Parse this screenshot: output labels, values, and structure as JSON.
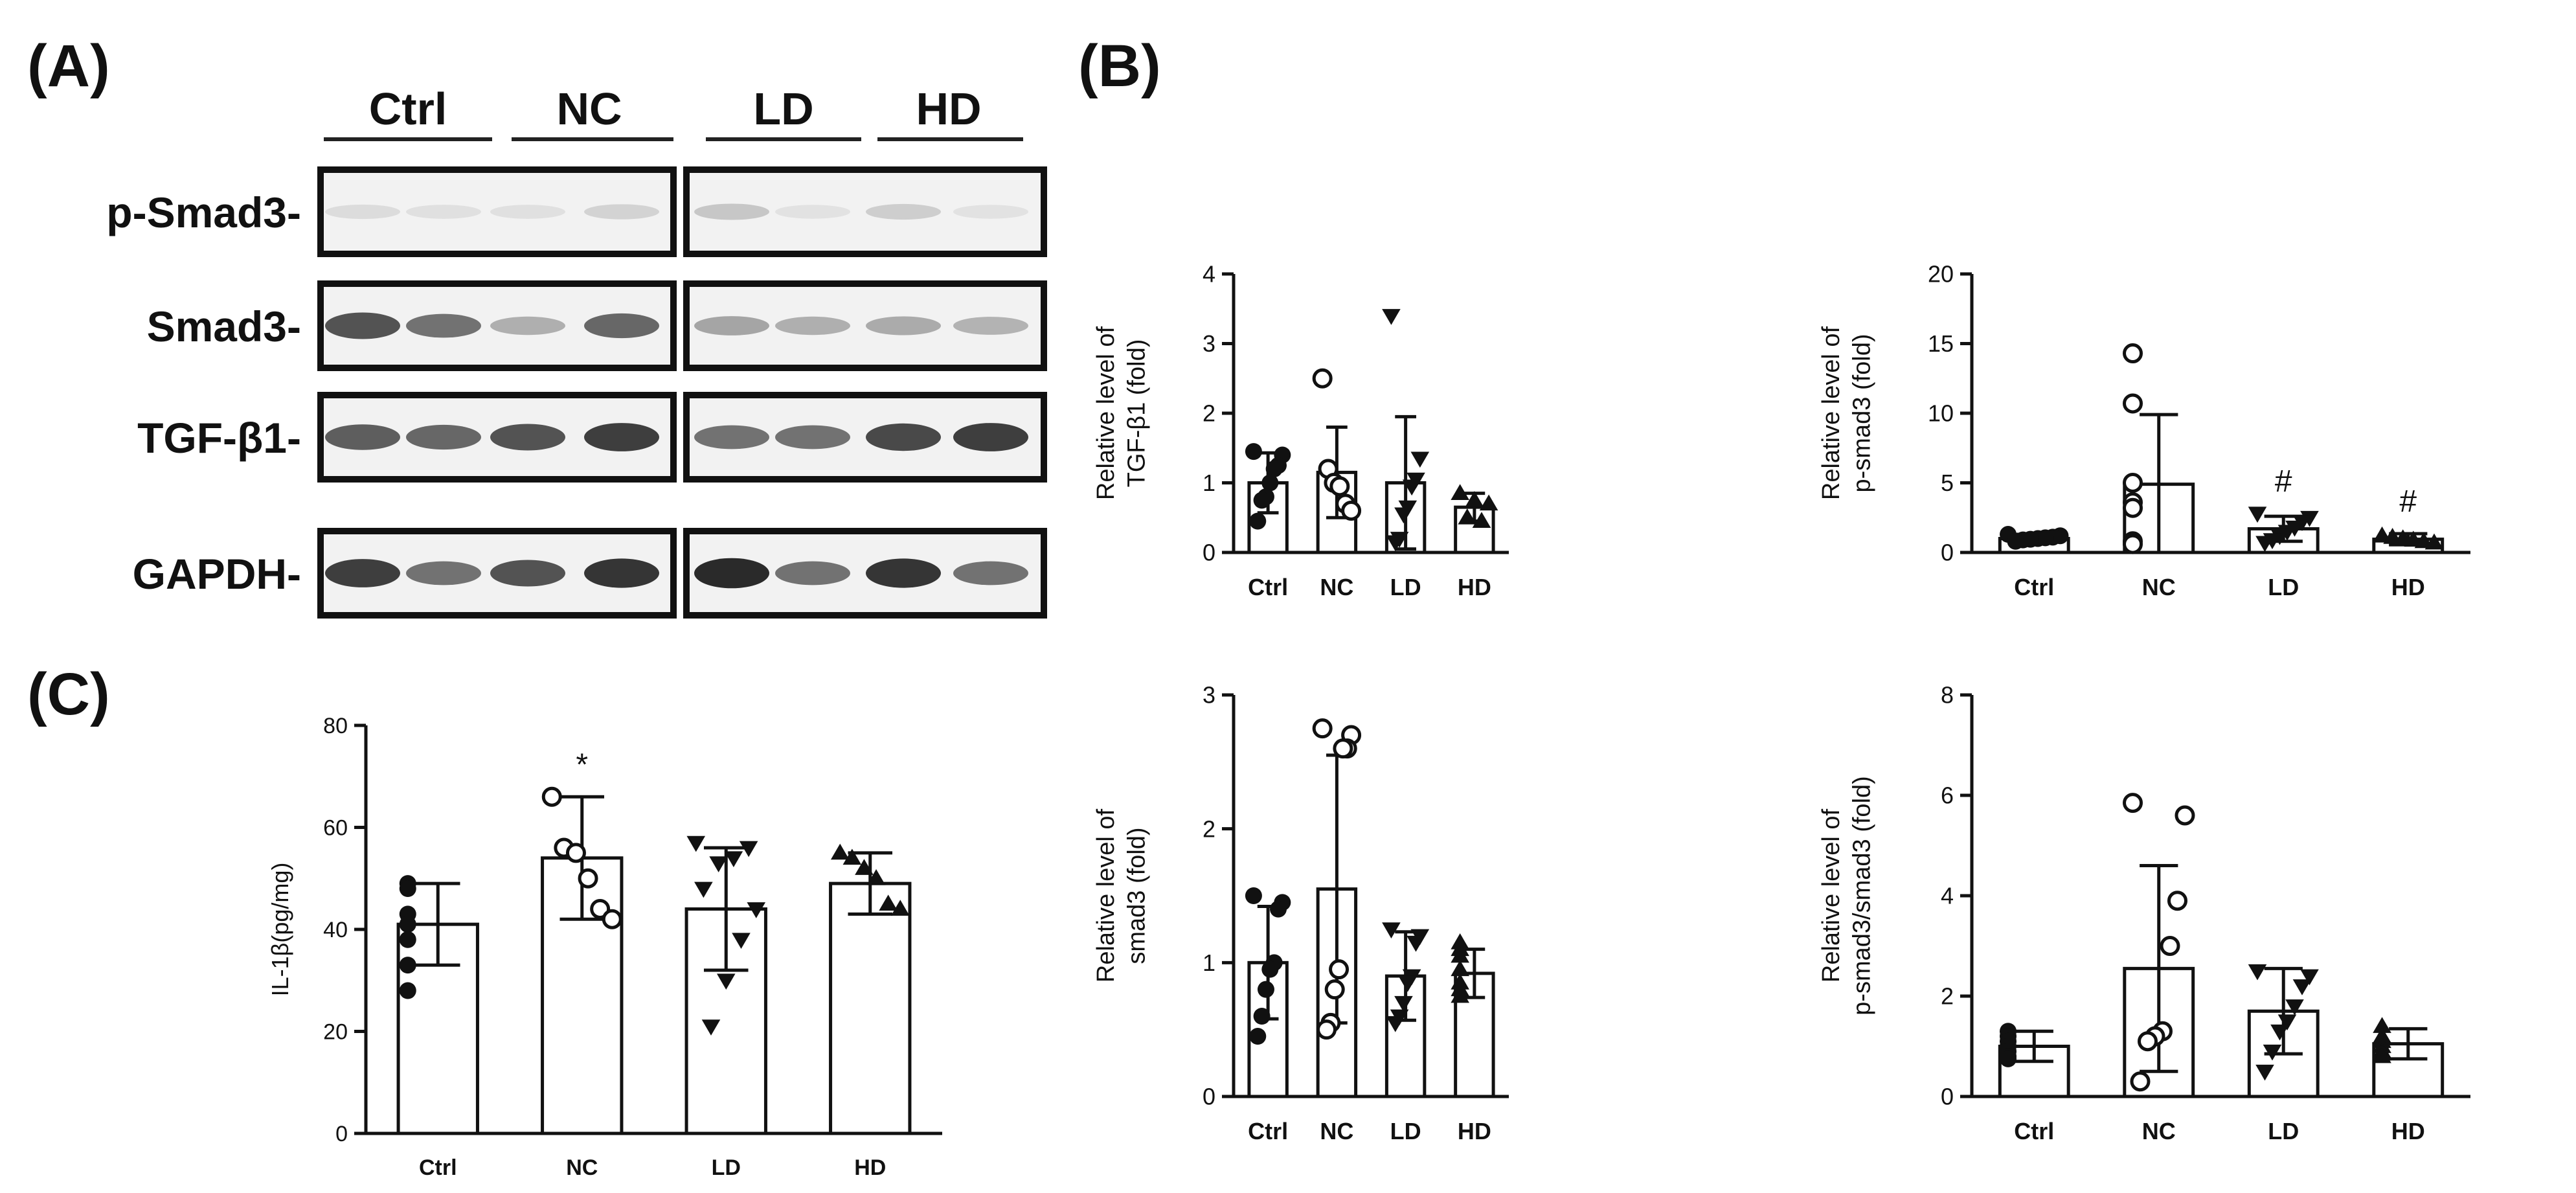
{
  "panels": {
    "A": "(A)",
    "B": "(B)",
    "C": "(C)"
  },
  "blot": {
    "groups": [
      "Ctrl",
      "NC",
      "LD",
      "HD"
    ],
    "rows": [
      {
        "label": "p-Smad3-",
        "intensity": [
          0.08,
          0.06,
          0.06,
          0.12,
          0.18,
          0.05,
          0.15,
          0.05
        ]
      },
      {
        "label": "Smad3-",
        "intensity": [
          0.75,
          0.6,
          0.3,
          0.65,
          0.35,
          0.3,
          0.32,
          0.28
        ]
      },
      {
        "label": "TGF-β1-",
        "intensity": [
          0.7,
          0.65,
          0.75,
          0.85,
          0.6,
          0.6,
          0.8,
          0.85
        ]
      },
      {
        "label": "GAPDH-",
        "intensity": [
          0.85,
          0.6,
          0.75,
          0.9,
          0.95,
          0.6,
          0.9,
          0.6
        ]
      }
    ]
  },
  "chart_data": [
    {
      "id": "B1",
      "type": "bar",
      "ylabel_lines": [
        "Relative level of",
        "TGF-β1 (fold)"
      ],
      "categories": [
        "Ctrl",
        "NC",
        "LD",
        "HD"
      ],
      "values": [
        1.0,
        1.15,
        1.0,
        0.65
      ],
      "errors": [
        0.43,
        0.65,
        0.95,
        0.2
      ],
      "ylim": [
        0,
        4
      ],
      "yticks": [
        "0",
        "1",
        "2",
        "3",
        "4"
      ],
      "annotations": [
        "",
        "",
        "",
        ""
      ],
      "points": [
        [
          1.45,
          1.4,
          1.25,
          1.2,
          1.0,
          0.8,
          0.75,
          0.45
        ],
        [
          2.5,
          1.2,
          1.0,
          0.95,
          0.7,
          0.6
        ],
        [
          3.4,
          1.35,
          1.05,
          0.95,
          0.65,
          0.55,
          0.2,
          0.15
        ],
        [
          0.85,
          0.75,
          0.7,
          0.5,
          0.45
        ]
      ],
      "markers": [
        "filled-circle",
        "open-circle",
        "filled-triangle-down",
        "filled-triangle-up"
      ]
    },
    {
      "id": "B2",
      "type": "bar",
      "ylabel_lines": [
        "Relative level of",
        "p-smad3 (fold)"
      ],
      "categories": [
        "Ctrl",
        "NC",
        "LD",
        "HD"
      ],
      "values": [
        1.0,
        4.9,
        1.7,
        0.95
      ],
      "errors": [
        0.3,
        5.0,
        0.9,
        0.4
      ],
      "ylim": [
        0,
        20
      ],
      "yticks": [
        "0",
        "5",
        "10",
        "15",
        "20"
      ],
      "annotations": [
        "",
        "",
        "#",
        "#"
      ],
      "points": [
        [
          1.3,
          1.2,
          1.1,
          1.05,
          1.0,
          0.95,
          0.9,
          0.8
        ],
        [
          14.3,
          10.7,
          5.0,
          3.6,
          3.2,
          0.8,
          0.6
        ],
        [
          2.8,
          2.5,
          2.2,
          1.8,
          1.5,
          1.2,
          0.9,
          0.7
        ],
        [
          1.2,
          1.1,
          1.0,
          0.9,
          0.8,
          0.7
        ]
      ],
      "markers": [
        "filled-circle",
        "open-circle",
        "filled-triangle-down",
        "filled-triangle-up"
      ]
    },
    {
      "id": "B3",
      "type": "bar",
      "ylabel_lines": [
        "Relative level of",
        "smad3 (fold)"
      ],
      "categories": [
        "Ctrl",
        "NC",
        "LD",
        "HD"
      ],
      "values": [
        1.0,
        1.55,
        0.9,
        0.92
      ],
      "errors": [
        0.42,
        1.0,
        0.33,
        0.18
      ],
      "ylim": [
        0,
        3
      ],
      "yticks": [
        "0",
        "1",
        "2",
        "3"
      ],
      "annotations": [
        "",
        "",
        "",
        ""
      ],
      "points": [
        [
          1.5,
          1.45,
          1.4,
          1.0,
          0.95,
          0.8,
          0.6,
          0.45
        ],
        [
          2.75,
          2.7,
          2.6,
          2.6,
          0.95,
          0.8,
          0.55,
          0.5
        ],
        [
          1.25,
          1.2,
          1.15,
          0.9,
          0.85,
          0.7,
          0.6,
          0.55
        ],
        [
          1.15,
          1.1,
          1.05,
          0.95,
          0.85,
          0.8,
          0.75
        ]
      ],
      "markers": [
        "filled-circle",
        "open-circle",
        "filled-triangle-down",
        "filled-triangle-up"
      ]
    },
    {
      "id": "B4",
      "type": "bar",
      "ylabel_lines": [
        "Relative level of",
        "p-smad3/smad3 (fold)"
      ],
      "categories": [
        "Ctrl",
        "NC",
        "LD",
        "HD"
      ],
      "values": [
        1.0,
        2.55,
        1.7,
        1.05
      ],
      "errors": [
        0.3,
        2.05,
        0.85,
        0.3
      ],
      "ylim": [
        0,
        8
      ],
      "yticks": [
        "0",
        "2",
        "4",
        "6",
        "8"
      ],
      "annotations": [
        "",
        "",
        "",
        ""
      ],
      "points": [
        [
          1.3,
          1.2,
          1.1,
          1.0,
          0.9,
          0.8,
          0.75
        ],
        [
          5.85,
          5.6,
          3.9,
          3.0,
          1.3,
          1.2,
          1.1,
          0.3
        ],
        [
          2.5,
          2.4,
          2.2,
          1.8,
          1.5,
          1.3,
          0.9,
          0.5
        ],
        [
          1.4,
          1.2,
          1.1,
          1.0,
          0.9,
          0.85,
          0.8
        ]
      ],
      "markers": [
        "filled-circle",
        "open-circle",
        "filled-triangle-down",
        "filled-triangle-up"
      ]
    },
    {
      "id": "C",
      "type": "bar",
      "ylabel_lines": [
        "IL-1β(pg/mg)"
      ],
      "categories": [
        "Ctrl",
        "NC",
        "LD",
        "HD"
      ],
      "values": [
        41,
        54,
        44,
        49
      ],
      "errors": [
        8,
        12,
        12,
        6
      ],
      "ylim": [
        0,
        80
      ],
      "yticks": [
        "0",
        "20",
        "40",
        "60",
        "80"
      ],
      "annotations": [
        "",
        "*",
        "",
        ""
      ],
      "points": [
        [
          49,
          48,
          43,
          41,
          38,
          33,
          28
        ],
        [
          66,
          56,
          55,
          50,
          44,
          42
        ],
        [
          57,
          56,
          54,
          53,
          48,
          44,
          38,
          30,
          21
        ],
        [
          55,
          54,
          52,
          50,
          45,
          44
        ]
      ],
      "markers": [
        "filled-circle",
        "open-circle",
        "filled-triangle-down",
        "filled-triangle-up"
      ]
    }
  ]
}
